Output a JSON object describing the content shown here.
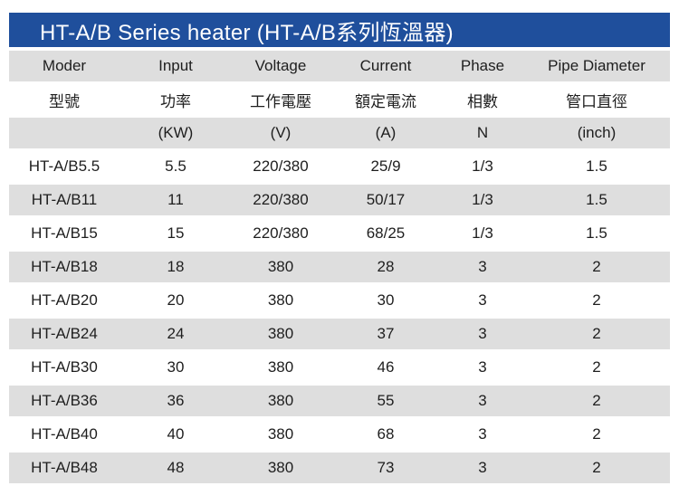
{
  "title": "HT-A/B Series heater (HT-A/B系列恆溫器)",
  "colors": {
    "title_bg": "#1f4f9c",
    "title_text": "#ffffff",
    "shaded_row": "#dedede"
  },
  "header": {
    "english": [
      "Moder",
      "Input",
      "Voltage",
      "Current",
      "Phase",
      "Pipe Diameter"
    ],
    "chinese": [
      "型號",
      "功率",
      "工作電壓",
      "額定電流",
      "相數",
      "管口直徑"
    ],
    "units": [
      "",
      "(KW)",
      "(V)",
      "(A)",
      "N",
      "(inch)"
    ]
  },
  "rows": [
    [
      "HT-A/B5.5",
      "5.5",
      "220/380",
      "25/9",
      "1/3",
      "1.5"
    ],
    [
      "HT-A/B11",
      "11",
      "220/380",
      "50/17",
      "1/3",
      "1.5"
    ],
    [
      "HT-A/B15",
      "15",
      "220/380",
      "68/25",
      "1/3",
      "1.5"
    ],
    [
      "HT-A/B18",
      "18",
      "380",
      "28",
      "3",
      "2"
    ],
    [
      "HT-A/B20",
      "20",
      "380",
      "30",
      "3",
      "2"
    ],
    [
      "HT-A/B24",
      "24",
      "380",
      "37",
      "3",
      "2"
    ],
    [
      "HT-A/B30",
      "30",
      "380",
      "46",
      "3",
      "2"
    ],
    [
      "HT-A/B36",
      "36",
      "380",
      "55",
      "3",
      "2"
    ],
    [
      "HT-A/B40",
      "40",
      "380",
      "68",
      "3",
      "2"
    ],
    [
      "HT-A/B48",
      "48",
      "380",
      "73",
      "3",
      "2"
    ]
  ]
}
